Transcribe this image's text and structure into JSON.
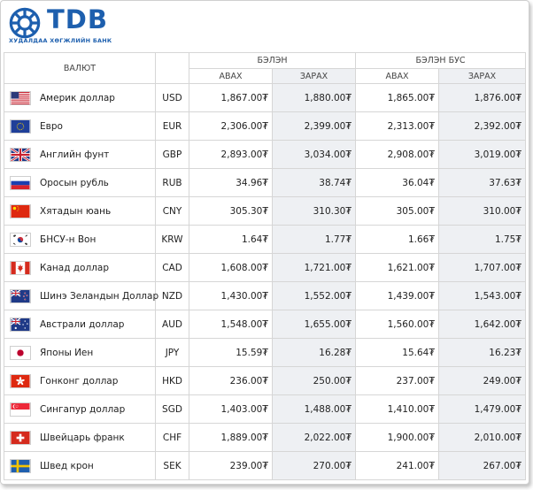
{
  "brand": {
    "name": "TDB",
    "subtitle": "ХУДАЛДАА ХӨГЖЛИЙН БАНК",
    "color": "#1d5fae"
  },
  "table": {
    "header": {
      "currency": "ВАЛЮТ",
      "cash": "БЭЛЭН",
      "noncash": "БЭЛЭН БУС",
      "buy": "АВАХ",
      "sell": "ЗАРАХ"
    },
    "rows": [
      {
        "flag": "us-flag-icon",
        "name": "Америк доллар",
        "code": "USD",
        "cash_buy": "1,867.00₮",
        "cash_sell": "1,880.00₮",
        "noncash_buy": "1,865.00₮",
        "noncash_sell": "1,876.00₮"
      },
      {
        "flag": "eu-flag-icon",
        "name": "Евро",
        "code": "EUR",
        "cash_buy": "2,306.00₮",
        "cash_sell": "2,399.00₮",
        "noncash_buy": "2,313.00₮",
        "noncash_sell": "2,392.00₮"
      },
      {
        "flag": "uk-flag-icon",
        "name": "Английн фунт",
        "code": "GBP",
        "cash_buy": "2,893.00₮",
        "cash_sell": "3,034.00₮",
        "noncash_buy": "2,908.00₮",
        "noncash_sell": "3,019.00₮"
      },
      {
        "flag": "ru-flag-icon",
        "name": "Оросын рубль",
        "code": "RUB",
        "cash_buy": "34.96₮",
        "cash_sell": "38.74₮",
        "noncash_buy": "36.04₮",
        "noncash_sell": "37.63₮"
      },
      {
        "flag": "cn-flag-icon",
        "name": "Хятадын юань",
        "code": "CNY",
        "cash_buy": "305.30₮",
        "cash_sell": "310.30₮",
        "noncash_buy": "305.00₮",
        "noncash_sell": "310.00₮"
      },
      {
        "flag": "kr-flag-icon",
        "name": "БНСУ-н Вон",
        "code": "KRW",
        "cash_buy": "1.64₮",
        "cash_sell": "1.77₮",
        "noncash_buy": "1.66₮",
        "noncash_sell": "1.75₮"
      },
      {
        "flag": "ca-flag-icon",
        "name": "Канад доллар",
        "code": "CAD",
        "cash_buy": "1,608.00₮",
        "cash_sell": "1,721.00₮",
        "noncash_buy": "1,621.00₮",
        "noncash_sell": "1,707.00₮"
      },
      {
        "flag": "nz-flag-icon",
        "name": "Шинэ Зеландын Доллар",
        "code": "NZD",
        "cash_buy": "1,430.00₮",
        "cash_sell": "1,552.00₮",
        "noncash_buy": "1,439.00₮",
        "noncash_sell": "1,543.00₮"
      },
      {
        "flag": "au-flag-icon",
        "name": "Австрали доллар",
        "code": "AUD",
        "cash_buy": "1,548.00₮",
        "cash_sell": "1,655.00₮",
        "noncash_buy": "1,560.00₮",
        "noncash_sell": "1,642.00₮"
      },
      {
        "flag": "jp-flag-icon",
        "name": "Японы Иен",
        "code": "JPY",
        "cash_buy": "15.59₮",
        "cash_sell": "16.28₮",
        "noncash_buy": "15.64₮",
        "noncash_sell": "16.23₮"
      },
      {
        "flag": "hk-flag-icon",
        "name": "Гонконг доллар",
        "code": "HKD",
        "cash_buy": "236.00₮",
        "cash_sell": "250.00₮",
        "noncash_buy": "237.00₮",
        "noncash_sell": "249.00₮"
      },
      {
        "flag": "sg-flag-icon",
        "name": "Сингапур доллар",
        "code": "SGD",
        "cash_buy": "1,403.00₮",
        "cash_sell": "1,488.00₮",
        "noncash_buy": "1,410.00₮",
        "noncash_sell": "1,479.00₮"
      },
      {
        "flag": "ch-flag-icon",
        "name": "Швейцарь франк",
        "code": "CHF",
        "cash_buy": "1,889.00₮",
        "cash_sell": "2,022.00₮",
        "noncash_buy": "1,900.00₮",
        "noncash_sell": "2,010.00₮"
      },
      {
        "flag": "se-flag-icon",
        "name": "Швед крон",
        "code": "SEK",
        "cash_buy": "239.00₮",
        "cash_sell": "270.00₮",
        "noncash_buy": "241.00₮",
        "noncash_sell": "267.00₮"
      }
    ]
  }
}
